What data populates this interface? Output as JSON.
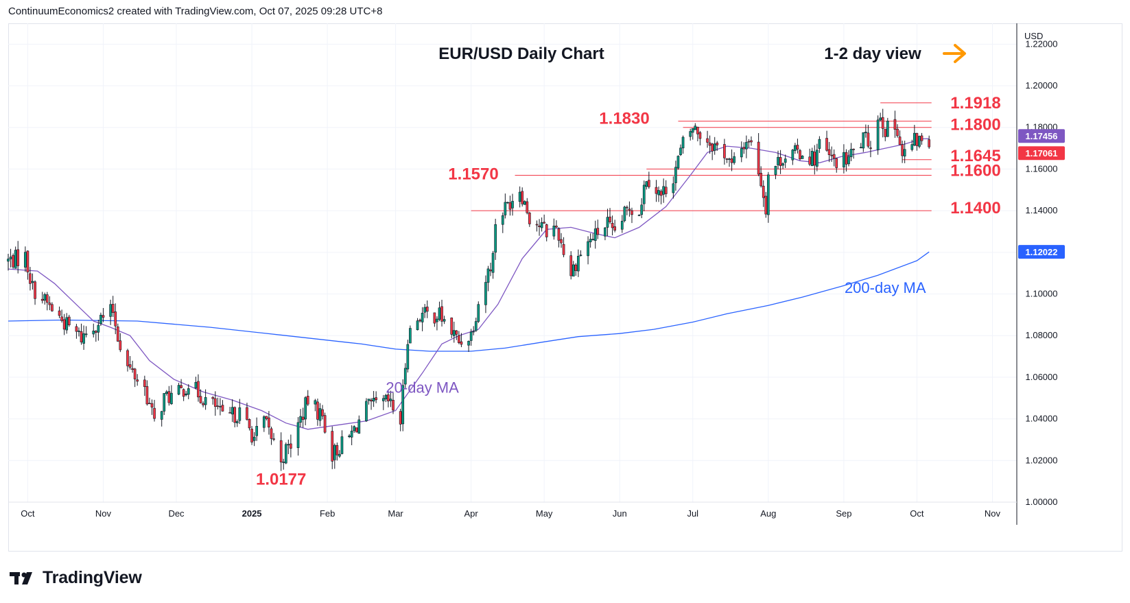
{
  "header": {
    "caption": "ContinuumEconomics2 created with TradingView.com, Oct 07, 2025 09:28 UTC+8"
  },
  "footer": {
    "brand": "TradingView"
  },
  "colors": {
    "up": "#089981",
    "down": "#f23645",
    "ma20": "#7e57c2",
    "ma200": "#2962ff",
    "level": "#f23645",
    "arrow": "#ff9800",
    "label_blue": "#2962ff"
  },
  "chart_data": {
    "type": "candlestick",
    "title": "EUR/USD Daily Chart",
    "view": "1-2 day view",
    "view_icon": "arrow-right-icon",
    "currency": "USD",
    "y_range": [
      1.0,
      1.23
    ],
    "y_ticks": [
      "1.22000",
      "1.20000",
      "1.18000",
      "1.16000",
      "1.14000",
      "1.12000",
      "1.10000",
      "1.08000",
      "1.06000",
      "1.04000",
      "1.02000",
      "1.00000"
    ],
    "x_ticks": [
      "Oct",
      "Nov",
      "Dec",
      "2025",
      "Feb",
      "Mar",
      "Apr",
      "May",
      "Jun",
      "Jul",
      "Aug",
      "Sep",
      "Oct",
      "Nov"
    ],
    "price_tags": [
      {
        "label": "1.17456",
        "value": 1.17456,
        "style": "ma20"
      },
      {
        "label": "1.17061",
        "value": 1.17061,
        "style": "last"
      },
      {
        "label": "1.12022",
        "value": 1.12022,
        "style": "ma200"
      }
    ],
    "levels": [
      {
        "label": "1.1918",
        "value": 1.1918,
        "from": "2025-09-16",
        "to": "2025-10-07"
      },
      {
        "label": "1.1830",
        "value": 1.183,
        "from": "2025-06-25",
        "to": "2025-10-07"
      },
      {
        "label": "1.1800",
        "value": 1.18,
        "from": "2025-06-27",
        "to": "2025-10-07"
      },
      {
        "label": "1.1645",
        "value": 1.1645,
        "from": "2025-09-25",
        "to": "2025-10-07"
      },
      {
        "label": "1.1600",
        "value": 1.16,
        "from": "2025-06-12",
        "to": "2025-10-07"
      },
      {
        "label": "1.1570",
        "value": 1.157,
        "from": "2025-04-19",
        "to": "2025-10-07"
      },
      {
        "label": "1.1400",
        "value": 1.14,
        "from": "2025-04-01",
        "to": "2025-10-07"
      }
    ],
    "annotations": [
      {
        "text": "1.0177",
        "date": "2025-01-13",
        "value": 1.0177,
        "anchor": "low"
      },
      {
        "text": "20-day MA",
        "date": "2025-03-12",
        "value": 1.0525,
        "color": "ma20"
      },
      {
        "text": "200-day MA",
        "date": "2025-09-18",
        "value": 1.1005,
        "color": "ma200"
      }
    ],
    "anchors": [
      [
        "2024-09-23",
        1.116
      ],
      [
        "2024-09-30",
        1.118
      ],
      [
        "2024-10-03",
        1.103
      ],
      [
        "2024-10-10",
        1.094
      ],
      [
        "2024-10-17",
        1.085
      ],
      [
        "2024-10-23",
        1.079
      ],
      [
        "2024-10-31",
        1.088
      ],
      [
        "2024-11-05",
        1.092
      ],
      [
        "2024-11-07",
        1.08
      ],
      [
        "2024-11-11",
        1.065
      ],
      [
        "2024-11-18",
        1.055
      ],
      [
        "2024-11-22",
        1.038
      ],
      [
        "2024-11-26",
        1.05
      ],
      [
        "2024-12-02",
        1.052
      ],
      [
        "2024-12-06",
        1.057
      ],
      [
        "2024-12-12",
        1.05
      ],
      [
        "2024-12-18",
        1.045
      ],
      [
        "2024-12-20",
        1.04
      ],
      [
        "2024-12-27",
        1.043
      ],
      [
        "2025-01-02",
        1.031
      ],
      [
        "2025-01-06",
        1.039
      ],
      [
        "2025-01-13",
        1.021
      ],
      [
        "2025-01-17",
        1.028
      ],
      [
        "2025-01-24",
        1.049
      ],
      [
        "2025-01-30",
        1.041
      ],
      [
        "2025-02-03",
        1.023
      ],
      [
        "2025-02-10",
        1.031
      ],
      [
        "2025-02-17",
        1.045
      ],
      [
        "2025-02-26",
        1.048
      ],
      [
        "2025-03-03",
        1.039
      ],
      [
        "2025-03-06",
        1.08
      ],
      [
        "2025-03-11",
        1.09
      ],
      [
        "2025-03-19",
        1.09
      ],
      [
        "2025-03-27",
        1.077
      ],
      [
        "2025-04-01",
        1.081
      ],
      [
        "2025-04-04",
        1.096
      ],
      [
        "2025-04-10",
        1.118
      ],
      [
        "2025-04-11",
        1.135
      ],
      [
        "2025-04-21",
        1.151
      ],
      [
        "2025-04-25",
        1.137
      ],
      [
        "2025-05-02",
        1.13
      ],
      [
        "2025-05-06",
        1.132
      ],
      [
        "2025-05-12",
        1.11
      ],
      [
        "2025-05-15",
        1.118
      ],
      [
        "2025-05-20",
        1.126
      ],
      [
        "2025-05-27",
        1.134
      ],
      [
        "2025-05-29",
        1.128
      ],
      [
        "2025-06-05",
        1.142
      ],
      [
        "2025-06-09",
        1.14
      ],
      [
        "2025-06-12",
        1.157
      ],
      [
        "2025-06-18",
        1.147
      ],
      [
        "2025-06-23",
        1.157
      ],
      [
        "2025-06-27",
        1.172
      ],
      [
        "2025-07-01",
        1.18
      ],
      [
        "2025-07-08",
        1.173
      ],
      [
        "2025-07-14",
        1.168
      ],
      [
        "2025-07-17",
        1.161
      ],
      [
        "2025-07-22",
        1.172
      ],
      [
        "2025-07-24",
        1.175
      ],
      [
        "2025-07-28",
        1.16
      ],
      [
        "2025-07-31",
        1.142
      ],
      [
        "2025-08-01",
        1.158
      ],
      [
        "2025-08-07",
        1.166
      ],
      [
        "2025-08-14",
        1.168
      ],
      [
        "2025-08-20",
        1.165
      ],
      [
        "2025-08-22",
        1.172
      ],
      [
        "2025-08-27",
        1.164
      ],
      [
        "2025-09-02",
        1.164
      ],
      [
        "2025-09-09",
        1.174
      ],
      [
        "2025-09-12",
        1.173
      ],
      [
        "2025-09-16",
        1.187
      ],
      [
        "2025-09-18",
        1.179
      ],
      [
        "2025-09-23",
        1.18
      ],
      [
        "2025-09-25",
        1.166
      ],
      [
        "2025-09-30",
        1.173
      ],
      [
        "2025-10-03",
        1.174
      ],
      [
        "2025-10-06",
        1.1706
      ]
    ],
    "ma20_path": [
      [
        "2024-09-23",
        1.112
      ],
      [
        "2024-10-05",
        1.111
      ],
      [
        "2024-10-12",
        1.105
      ],
      [
        "2024-10-20",
        1.096
      ],
      [
        "2024-10-28",
        1.087
      ],
      [
        "2024-11-04",
        1.084
      ],
      [
        "2024-11-12",
        1.08
      ],
      [
        "2024-11-20",
        1.068
      ],
      [
        "2024-11-30",
        1.059
      ],
      [
        "2024-12-12",
        1.053
      ],
      [
        "2024-12-24",
        1.049
      ],
      [
        "2025-01-05",
        1.044
      ],
      [
        "2025-01-15",
        1.038
      ],
      [
        "2025-01-24",
        1.035
      ],
      [
        "2025-02-05",
        1.037
      ],
      [
        "2025-02-17",
        1.039
      ],
      [
        "2025-03-01",
        1.044
      ],
      [
        "2025-03-12",
        1.062
      ],
      [
        "2025-03-20",
        1.076
      ],
      [
        "2025-03-27",
        1.08
      ],
      [
        "2025-04-04",
        1.083
      ],
      [
        "2025-04-12",
        1.095
      ],
      [
        "2025-04-22",
        1.117
      ],
      [
        "2025-05-02",
        1.131
      ],
      [
        "2025-05-12",
        1.132
      ],
      [
        "2025-05-22",
        1.129
      ],
      [
        "2025-05-30",
        1.127
      ],
      [
        "2025-06-09",
        1.132
      ],
      [
        "2025-06-20",
        1.142
      ],
      [
        "2025-06-30",
        1.157
      ],
      [
        "2025-07-07",
        1.168
      ],
      [
        "2025-07-15",
        1.171
      ],
      [
        "2025-07-25",
        1.17
      ],
      [
        "2025-08-04",
        1.168
      ],
      [
        "2025-08-14",
        1.164
      ],
      [
        "2025-08-22",
        1.163
      ],
      [
        "2025-08-31",
        1.166
      ],
      [
        "2025-09-10",
        1.168
      ],
      [
        "2025-09-18",
        1.17
      ],
      [
        "2025-09-26",
        1.172
      ],
      [
        "2025-10-03",
        1.1745
      ],
      [
        "2025-10-06",
        1.17456
      ]
    ],
    "ma200_path": [
      [
        "2024-09-23",
        1.087
      ],
      [
        "2024-10-15",
        1.0875
      ],
      [
        "2024-11-15",
        1.087
      ],
      [
        "2024-12-15",
        1.084
      ],
      [
        "2025-01-15",
        1.08
      ],
      [
        "2025-02-15",
        1.076
      ],
      [
        "2025-03-01",
        1.0735
      ],
      [
        "2025-03-15",
        1.0725
      ],
      [
        "2025-04-01",
        1.0725
      ],
      [
        "2025-04-15",
        1.074
      ],
      [
        "2025-05-01",
        1.077
      ],
      [
        "2025-05-15",
        1.0795
      ],
      [
        "2025-06-01",
        1.081
      ],
      [
        "2025-06-15",
        1.083
      ],
      [
        "2025-07-01",
        1.0865
      ],
      [
        "2025-07-15",
        1.0905
      ],
      [
        "2025-08-01",
        1.0945
      ],
      [
        "2025-08-15",
        1.0985
      ],
      [
        "2025-09-01",
        1.104
      ],
      [
        "2025-09-15",
        1.109
      ],
      [
        "2025-10-01",
        1.116
      ],
      [
        "2025-10-06",
        1.12022
      ]
    ]
  }
}
